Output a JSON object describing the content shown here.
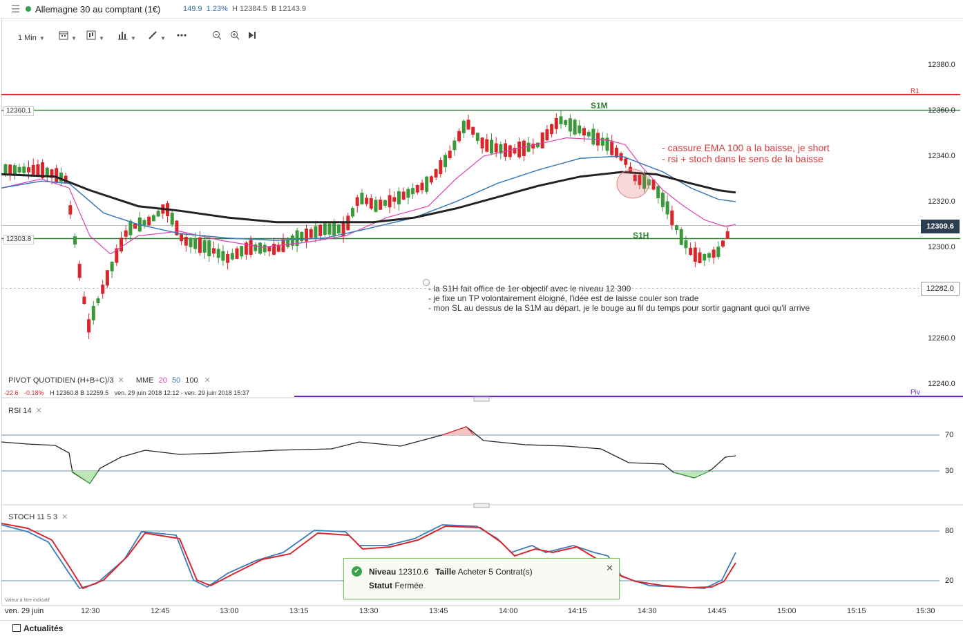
{
  "header": {
    "title": "Allemagne 30 au comptant (1€)",
    "change": "149.9",
    "change_pct": "1.23%",
    "high": "H 12384.5",
    "low": "B 12143.9"
  },
  "toolbar": {
    "timeframe": "1 Min",
    "icons": [
      "calendar-icon",
      "chart-type-icon",
      "indicators-icon",
      "draw-icon",
      "more-icon",
      "zoom-out-icon",
      "zoom-in-icon",
      "go-latest-icon"
    ]
  },
  "main_chart": {
    "y_ticks": [
      "12380.0",
      "12360.0",
      "12340.0",
      "12320.0",
      "12300.0",
      "12260.0",
      "12240.0"
    ],
    "current_price": "12309.6",
    "level_282": "12282.0",
    "tag_s1m": "12360.1",
    "tag_s1h": "12303.8",
    "label_s1m": "S1M",
    "label_s1h": "S1H",
    "label_r1": "R1",
    "label_piv": "Piv"
  },
  "annotations": {
    "red_note": [
      "- cassure EMA 100 a la baisse, je short",
      "- rsi + stoch dans le sens de la baisse"
    ],
    "black_note": [
      "- la S1H fait office de 1er objectif avec le niveau 12 300",
      "- je fixe un TP volontairement éloigné, l'idée est de laisse couler son trade",
      "- mon SL au dessus de la S1M au départ, je le bouge au fil du temps pour sortir gagnant quoi qu'il arrive"
    ]
  },
  "legend": {
    "pivot": "PIVOT  QUOTIDIEN  (H+B+C)/3",
    "mme": "MME",
    "mme_20": "20",
    "mme_50": "50",
    "mme_100": "100",
    "status_chg": "-22.6",
    "status_pct": "-0.18%",
    "status_hb": "H 12360.8   B 12259.5",
    "status_range": "ven. 29 juin 2018 12:12 - ven. 29 juin 2018 15:37",
    "rsi": "RSI  14",
    "stoch": "STOCH  11  5  3"
  },
  "rsi_axis": [
    "70",
    "30"
  ],
  "stoch_axis": [
    "80",
    "20"
  ],
  "x_axis": {
    "date": "ven. 29 juin",
    "ticks": [
      "12:30",
      "12:45",
      "13:00",
      "13:15",
      "13:30",
      "13:45",
      "14:00",
      "14:15",
      "14:30",
      "14:45",
      "15:00",
      "15:15",
      "15:30"
    ]
  },
  "disclaimer": "Valeur à titre indicatif",
  "toast": {
    "level_label": "Niveau",
    "level_value": "12310.6",
    "size_label": "Taille",
    "size_value": "Acheter 5 Contrat(s)",
    "status_label": "Statut",
    "status_value": "Fermée"
  },
  "bottombar": {
    "label": "Actualités"
  },
  "colors": {
    "up": "#3a9a3a",
    "down": "#d9262b",
    "ema20": "#e040b0",
    "ema50": "#3a7ab8",
    "ema100": "#222222",
    "r1": "#d9262b",
    "support": "#2e7d32",
    "piv": "#6a2ab8",
    "rsi": "#222222",
    "stoch_k": "#3a7ab8",
    "stoch_d": "#d9262b"
  }
}
